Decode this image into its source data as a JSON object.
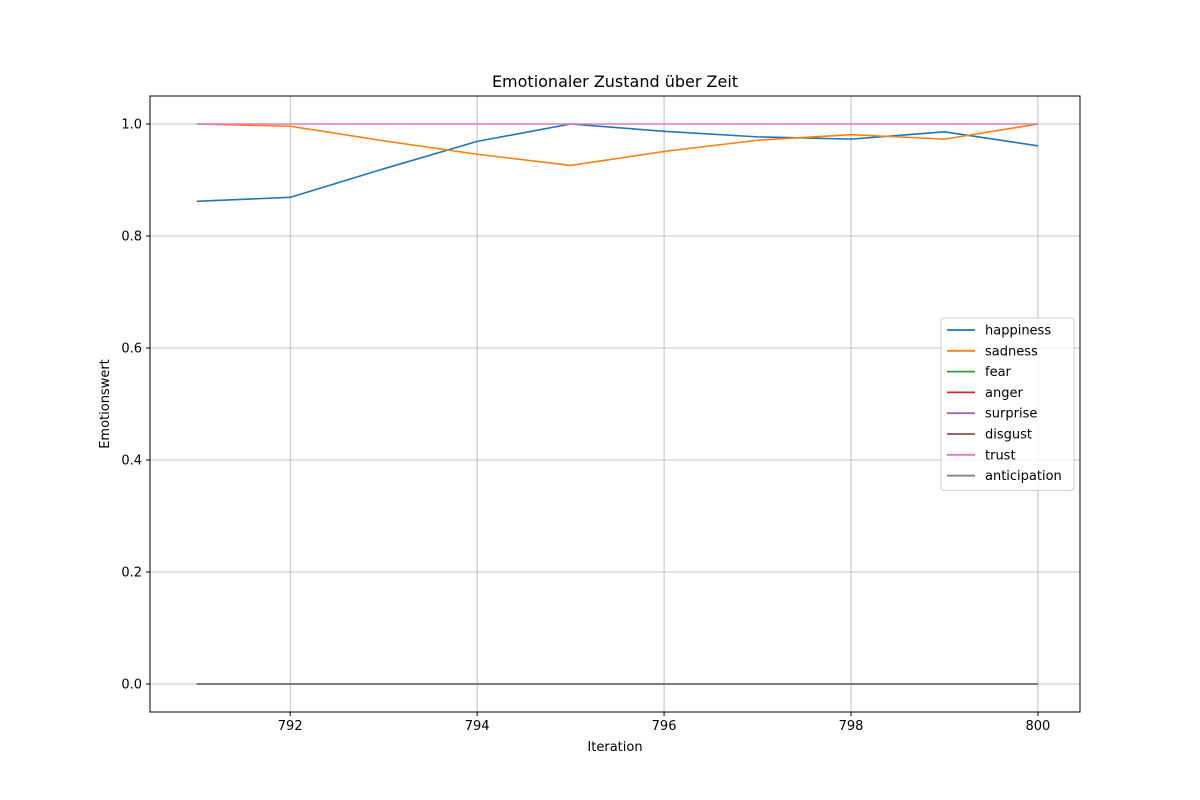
{
  "chart_data": {
    "type": "line",
    "title": "Emotionaler Zustand über Zeit",
    "xlabel": "Iteration",
    "ylabel": "Emotionswert",
    "x": [
      791,
      792,
      793,
      794,
      795,
      796,
      797,
      798,
      799,
      800
    ],
    "xlim": [
      790.5,
      800.45
    ],
    "ylim": [
      -0.05,
      1.05
    ],
    "xticks": [
      "792",
      "794",
      "796",
      "798",
      "800"
    ],
    "yticks": [
      "0.0",
      "0.2",
      "0.4",
      "0.6",
      "0.8",
      "1.0"
    ],
    "grid": true,
    "legend_position": "center-right",
    "series": [
      {
        "name": "happiness",
        "color": "#1f77b4",
        "values": [
          0.862,
          0.869,
          0.92,
          0.969,
          1.0,
          0.987,
          0.977,
          0.973,
          0.986,
          0.961
        ]
      },
      {
        "name": "sadness",
        "color": "#ff7f0e",
        "values": [
          1.0,
          0.996,
          0.97,
          0.946,
          0.926,
          0.951,
          0.971,
          0.981,
          0.973,
          1.0
        ]
      },
      {
        "name": "fear",
        "color": "#2ca02c",
        "values": [
          0,
          0,
          0,
          0,
          0,
          0,
          0,
          0,
          0,
          0
        ]
      },
      {
        "name": "anger",
        "color": "#d62728",
        "values": [
          0,
          0,
          0,
          0,
          0,
          0,
          0,
          0,
          0,
          0
        ]
      },
      {
        "name": "surprise",
        "color": "#9467bd",
        "values": [
          0,
          0,
          0,
          0,
          0,
          0,
          0,
          0,
          0,
          0
        ]
      },
      {
        "name": "disgust",
        "color": "#8c564b",
        "values": [
          0,
          0,
          0,
          0,
          0,
          0,
          0,
          0,
          0,
          0
        ]
      },
      {
        "name": "trust",
        "color": "#e377c2",
        "values": [
          1.0,
          1.0,
          1.0,
          1.0,
          1.0,
          1.0,
          1.0,
          1.0,
          1.0,
          1.0
        ]
      },
      {
        "name": "anticipation",
        "color": "#7f7f7f",
        "values": [
          0,
          0,
          0,
          0,
          0,
          0,
          0,
          0,
          0,
          0
        ]
      }
    ]
  }
}
